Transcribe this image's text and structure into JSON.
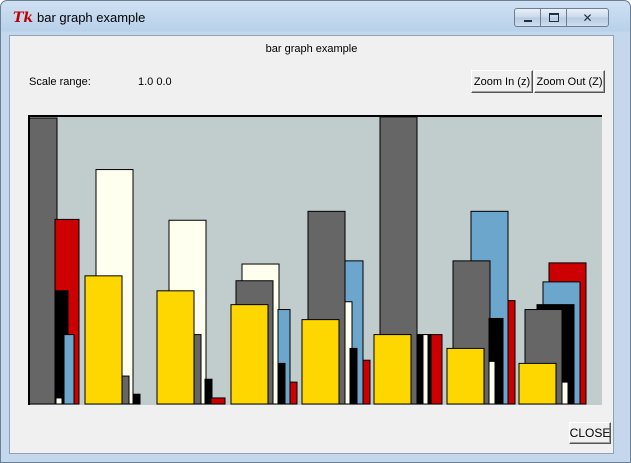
{
  "window": {
    "title": "bar graph example",
    "icon": "tk-feather-icon"
  },
  "header": {
    "title": "bar graph example"
  },
  "scale": {
    "label": "Scale range:",
    "value": "1.0 0.0"
  },
  "buttons": {
    "zoom_in": "Zoom In (z)",
    "zoom_out": "Zoom Out (Z)",
    "close": "CLOSE"
  },
  "colors": {
    "canvas_bg": "#c1cdcd",
    "gray": "#666666",
    "red": "#cc0000",
    "black": "#000000",
    "blue": "#6ca6cd",
    "yellow": "#ffd700",
    "ivory": "#fffff0"
  },
  "chart_data": {
    "type": "bar",
    "ylim": [
      0,
      1
    ],
    "bars": [
      {
        "g": 0,
        "off": 0,
        "w": 22,
        "v": 0.086,
        "c": "yellow"
      },
      {
        "g": 0,
        "off": 0,
        "w": 29,
        "v": 0.993,
        "c": "gray"
      },
      {
        "g": 0,
        "off": 27,
        "w": 24,
        "v": 0.641,
        "c": "red"
      },
      {
        "g": 0,
        "off": 27,
        "w": 13,
        "v": 0.393,
        "c": "black"
      },
      {
        "g": 0,
        "off": 36,
        "w": 10,
        "v": 0.241,
        "c": "blue"
      },
      {
        "g": 0,
        "off": 28,
        "w": 6,
        "v": 0.021,
        "c": "ivory"
      },
      {
        "g": 1,
        "off": 68,
        "w": 37,
        "v": 0.814,
        "c": "ivory"
      },
      {
        "g": 1,
        "off": 57,
        "w": 37,
        "v": 0.445,
        "c": "yellow"
      },
      {
        "g": 1,
        "off": 94,
        "w": 7,
        "v": 0.097,
        "c": "gray"
      },
      {
        "g": 1,
        "off": 105,
        "w": 7,
        "v": 0.034,
        "c": "black"
      },
      {
        "g": 2,
        "off": 141,
        "w": 37,
        "v": 0.638,
        "c": "ivory"
      },
      {
        "g": 2,
        "off": 129,
        "w": 37,
        "v": 0.393,
        "c": "yellow"
      },
      {
        "g": 2,
        "off": 166,
        "w": 7,
        "v": 0.241,
        "c": "gray"
      },
      {
        "g": 2,
        "off": 177,
        "w": 7,
        "v": 0.086,
        "c": "black"
      },
      {
        "g": 2,
        "off": 183,
        "w": 14,
        "v": 0.021,
        "c": "red"
      },
      {
        "g": 3,
        "off": 214,
        "w": 37,
        "v": 0.486,
        "c": "ivory"
      },
      {
        "g": 3,
        "off": 208,
        "w": 37,
        "v": 0.428,
        "c": "gray"
      },
      {
        "g": 3,
        "off": 203,
        "w": 37,
        "v": 0.345,
        "c": "yellow"
      },
      {
        "g": 3,
        "off": 250,
        "w": 12,
        "v": 0.328,
        "c": "blue"
      },
      {
        "g": 3,
        "off": 250,
        "w": 7,
        "v": 0.141,
        "c": "black"
      },
      {
        "g": 3,
        "off": 262,
        "w": 7,
        "v": 0.076,
        "c": "red"
      },
      {
        "g": 4,
        "off": 280,
        "w": 37,
        "v": 0.669,
        "c": "gray"
      },
      {
        "g": 4,
        "off": 317,
        "w": 18,
        "v": 0.497,
        "c": "blue"
      },
      {
        "g": 4,
        "off": 274,
        "w": 37,
        "v": 0.293,
        "c": "yellow"
      },
      {
        "g": 4,
        "off": 317,
        "w": 7,
        "v": 0.355,
        "c": "ivory"
      },
      {
        "g": 4,
        "off": 322,
        "w": 7,
        "v": 0.193,
        "c": "black"
      },
      {
        "g": 4,
        "off": 335,
        "w": 7,
        "v": 0.152,
        "c": "red"
      },
      {
        "g": 5,
        "off": 352,
        "w": 37,
        "v": 0.997,
        "c": "gray"
      },
      {
        "g": 5,
        "off": 346,
        "w": 37,
        "v": 0.241,
        "c": "yellow"
      },
      {
        "g": 5,
        "off": 389,
        "w": 25,
        "v": 0.241,
        "c": "red"
      },
      {
        "g": 5,
        "off": 389,
        "w": 14,
        "v": 0.241,
        "c": "black"
      },
      {
        "g": 5,
        "off": 395,
        "w": 5,
        "v": 0.241,
        "c": "ivory"
      },
      {
        "g": 6,
        "off": 443,
        "w": 37,
        "v": 0.669,
        "c": "blue"
      },
      {
        "g": 6,
        "off": 425,
        "w": 37,
        "v": 0.497,
        "c": "gray"
      },
      {
        "g": 6,
        "off": 419,
        "w": 37,
        "v": 0.193,
        "c": "yellow"
      },
      {
        "g": 6,
        "off": 480,
        "w": 7,
        "v": 0.359,
        "c": "red"
      },
      {
        "g": 6,
        "off": 461,
        "w": 14,
        "v": 0.297,
        "c": "black"
      },
      {
        "g": 6,
        "off": 461,
        "w": 6,
        "v": 0.148,
        "c": "ivory"
      },
      {
        "g": 7,
        "off": 521,
        "w": 37,
        "v": 0.49,
        "c": "red"
      },
      {
        "g": 7,
        "off": 515,
        "w": 37,
        "v": 0.424,
        "c": "blue"
      },
      {
        "g": 7,
        "off": 509,
        "w": 37,
        "v": 0.345,
        "c": "black"
      },
      {
        "g": 7,
        "off": 497,
        "w": 37,
        "v": 0.328,
        "c": "gray"
      },
      {
        "g": 7,
        "off": 491,
        "w": 37,
        "v": 0.141,
        "c": "yellow"
      },
      {
        "g": 7,
        "off": 534,
        "w": 6,
        "v": 0.076,
        "c": "ivory"
      }
    ]
  }
}
